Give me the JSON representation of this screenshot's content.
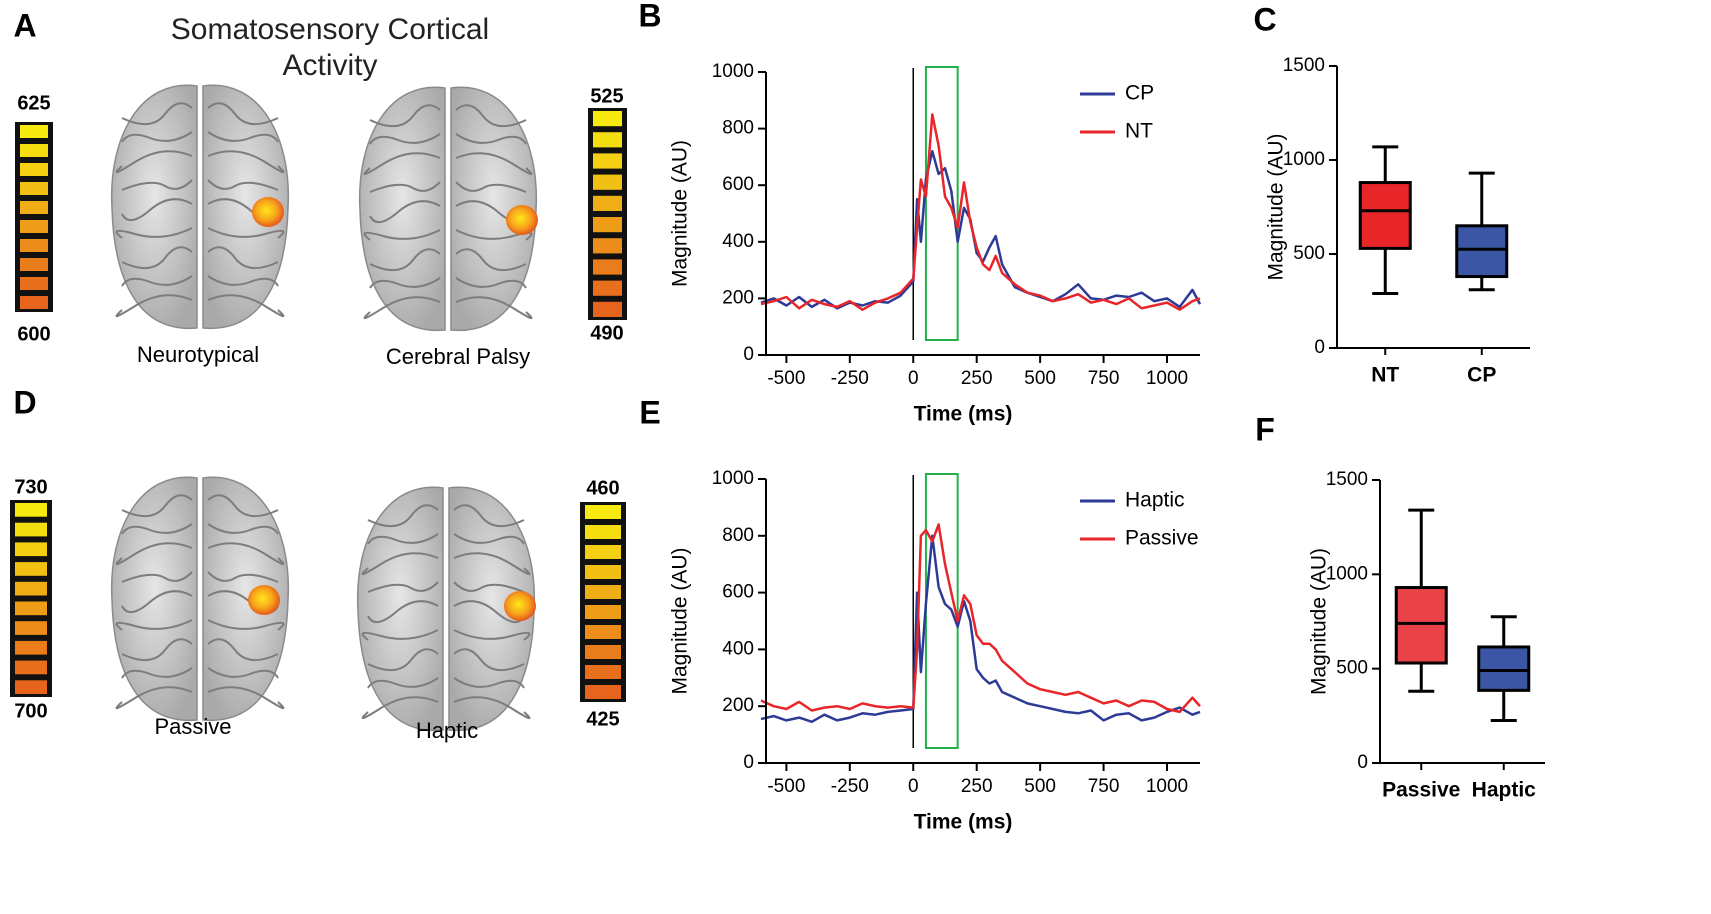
{
  "title": "Somatosensory Cortical Activity",
  "panel_labels": [
    "A",
    "B",
    "C",
    "D",
    "E",
    "F"
  ],
  "brain_maps": [
    {
      "caption": "Neurotypical",
      "scale_max": 625,
      "scale_min": 600
    },
    {
      "caption": "Cerebral Palsy",
      "scale_max": 525,
      "scale_min": 490
    },
    {
      "caption": "Passive",
      "scale_max": 730,
      "scale_min": 700
    },
    {
      "caption": "Haptic",
      "scale_max": 460,
      "scale_min": 425
    }
  ],
  "chart_data": [
    {
      "type": "line",
      "x": [
        -600,
        -550,
        -500,
        -450,
        -400,
        -350,
        -300,
        -250,
        -200,
        -150,
        -100,
        -50,
        0,
        15,
        30,
        50,
        75,
        100,
        125,
        150,
        175,
        200,
        225,
        250,
        275,
        300,
        325,
        350,
        400,
        450,
        500,
        550,
        600,
        650,
        700,
        750,
        800,
        850,
        900,
        950,
        1000,
        1050,
        1100,
        1130
      ],
      "series": [
        {
          "name": "CP",
          "color": "#2e3b96",
          "values": [
            185,
            200,
            175,
            205,
            170,
            195,
            165,
            185,
            175,
            190,
            185,
            210,
            260,
            550,
            400,
            620,
            720,
            640,
            660,
            580,
            400,
            520,
            480,
            360,
            330,
            380,
            420,
            320,
            240,
            220,
            205,
            190,
            215,
            250,
            200,
            195,
            210,
            205,
            220,
            190,
            200,
            170,
            230,
            180
          ]
        },
        {
          "name": "NT",
          "color": "#e8262a",
          "values": [
            180,
            190,
            205,
            165,
            195,
            180,
            170,
            190,
            160,
            185,
            200,
            220,
            270,
            450,
            620,
            560,
            850,
            740,
            560,
            520,
            450,
            610,
            470,
            380,
            320,
            300,
            350,
            290,
            250,
            220,
            210,
            190,
            200,
            215,
            185,
            195,
            180,
            200,
            165,
            175,
            185,
            160,
            190,
            200
          ]
        }
      ],
      "xlim": [
        -600,
        1130
      ],
      "xticks": [
        -500,
        -250,
        0,
        250,
        500,
        750,
        1000
      ],
      "ylim": [
        0,
        1000
      ],
      "yticks": [
        0,
        200,
        400,
        600,
        800,
        1000
      ],
      "x_label": "Time (ms)",
      "y_label": "Magnitude (AU)",
      "legend": "upper right",
      "stimulus_onset": 0,
      "window": [
        50,
        175
      ]
    },
    {
      "type": "box",
      "categories": [
        "NT",
        "CP"
      ],
      "boxes": [
        {
          "min": 290,
          "q1": 530,
          "median": 730,
          "q3": 880,
          "max": 1070,
          "color": "#e8262a"
        },
        {
          "min": 310,
          "q1": 380,
          "median": 525,
          "q3": 650,
          "max": 930,
          "color": "#3a56a5"
        }
      ],
      "ylim": [
        0,
        1500
      ],
      "yticks": [
        0,
        500,
        1000,
        1500
      ],
      "y_label": "Magnitude (AU)"
    },
    {
      "type": "line",
      "x": [
        -600,
        -550,
        -500,
        -450,
        -400,
        -350,
        -300,
        -250,
        -200,
        -150,
        -100,
        -50,
        0,
        15,
        30,
        50,
        75,
        100,
        125,
        150,
        175,
        200,
        225,
        250,
        275,
        300,
        325,
        350,
        400,
        450,
        500,
        550,
        600,
        650,
        700,
        750,
        800,
        850,
        900,
        950,
        1000,
        1050,
        1100,
        1130
      ],
      "series": [
        {
          "name": "Haptic",
          "color": "#2e3b96",
          "values": [
            155,
            165,
            150,
            160,
            145,
            170,
            150,
            160,
            175,
            170,
            180,
            185,
            190,
            600,
            320,
            560,
            800,
            620,
            560,
            540,
            480,
            570,
            500,
            330,
            300,
            280,
            290,
            250,
            230,
            210,
            200,
            190,
            180,
            175,
            185,
            150,
            170,
            175,
            150,
            160,
            180,
            195,
            170,
            180
          ]
        },
        {
          "name": "Passive",
          "color": "#e8262a",
          "values": [
            220,
            200,
            190,
            215,
            185,
            195,
            200,
            190,
            210,
            200,
            195,
            200,
            195,
            400,
            800,
            820,
            780,
            840,
            700,
            600,
            500,
            590,
            560,
            450,
            420,
            420,
            400,
            360,
            320,
            280,
            260,
            250,
            240,
            250,
            230,
            210,
            220,
            200,
            220,
            215,
            190,
            180,
            230,
            200
          ]
        }
      ],
      "xlim": [
        -600,
        1130
      ],
      "xticks": [
        -500,
        -250,
        0,
        250,
        500,
        750,
        1000
      ],
      "ylim": [
        0,
        1000
      ],
      "yticks": [
        0,
        200,
        400,
        600,
        800,
        1000
      ],
      "x_label": "Time (ms)",
      "y_label": "Magnitude (AU)",
      "legend": "upper right",
      "stimulus_onset": 0,
      "window": [
        50,
        175
      ]
    },
    {
      "type": "box",
      "categories": [
        "Passive",
        "Haptic"
      ],
      "boxes": [
        {
          "min": 380,
          "q1": 530,
          "median": 740,
          "q3": 930,
          "max": 1340,
          "color": "#e94349"
        },
        {
          "min": 225,
          "q1": 385,
          "median": 490,
          "q3": 615,
          "max": 775,
          "color": "#3a56a5"
        }
      ],
      "ylim": [
        0,
        1500
      ],
      "yticks": [
        0,
        500,
        1000,
        1500
      ],
      "y_label": "Magnitude (AU)"
    }
  ]
}
